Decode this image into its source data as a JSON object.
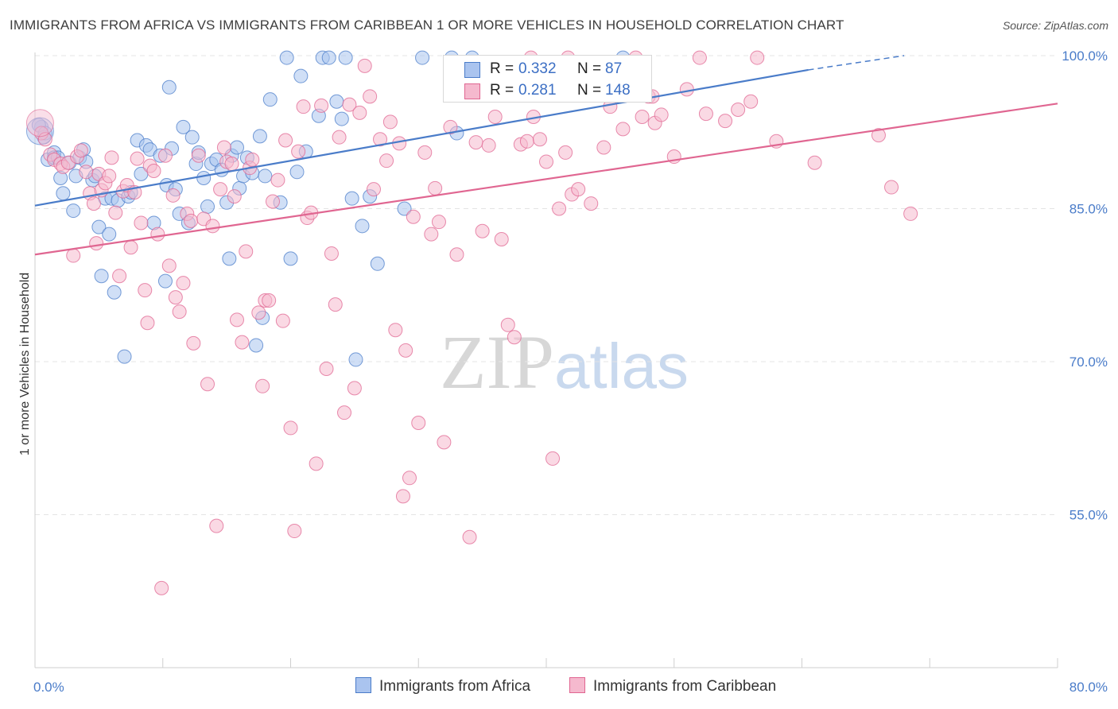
{
  "title": "IMMIGRANTS FROM AFRICA VS IMMIGRANTS FROM CARIBBEAN 1 OR MORE VEHICLES IN HOUSEHOLD CORRELATION CHART",
  "source": "Source: ZipAtlas.com",
  "watermark": {
    "zip": "ZIP",
    "atlas": "atlas"
  },
  "colors": {
    "africa": "#4a7cc9",
    "africa_fill": "#aac4ef",
    "caribbean": "#e06691",
    "caribbean_fill": "#f5b9ce",
    "tick": "#4a7cc9"
  },
  "legend": {
    "rows": [
      {
        "r_label": "R =",
        "r_value": "0.332",
        "n_label": "N =",
        "n_value": "87"
      },
      {
        "r_label": "R =",
        "r_value": "0.281",
        "n_label": "N =",
        "n_value": "148"
      }
    ]
  },
  "bottom_legend": {
    "africa": "Immigrants from Africa",
    "caribbean": "Immigrants from Caribbean"
  },
  "chart_data": {
    "type": "scatter",
    "xlabel": "",
    "ylabel": "1 or more Vehicles in Household",
    "xlim": [
      0,
      80
    ],
    "ylim": [
      40,
      100
    ],
    "x_tick_labels": [
      "0.0%",
      "80.0%"
    ],
    "y_ticks": [
      100,
      85,
      70,
      55
    ],
    "y_tick_labels": [
      "100.0%",
      "85.0%",
      "70.0%",
      "55.0%"
    ],
    "grid": true,
    "series": [
      {
        "name": "Immigrants from Africa",
        "trend": {
          "x1": 0,
          "y1": 85.3,
          "x2": 60.5,
          "y2": 98.6,
          "dash_to_x": 68,
          "dash_to_y": 100
        },
        "points": [
          [
            0.5,
            93.0
          ],
          [
            0.7,
            92.0
          ],
          [
            1.0,
            89.8
          ],
          [
            1.5,
            90.5
          ],
          [
            1.5,
            90.0
          ],
          [
            2.0,
            88.0
          ],
          [
            2.2,
            86.5
          ],
          [
            2.7,
            89.5
          ],
          [
            3.0,
            84.8
          ],
          [
            3.2,
            88.2
          ],
          [
            3.5,
            90.0
          ],
          [
            3.8,
            90.8
          ],
          [
            4.0,
            89.6
          ],
          [
            4.5,
            87.8
          ],
          [
            4.7,
            88.2
          ],
          [
            5.0,
            83.2
          ],
          [
            5.2,
            78.4
          ],
          [
            5.5,
            86.0
          ],
          [
            5.8,
            82.5
          ],
          [
            6.0,
            86.0
          ],
          [
            6.2,
            76.8
          ],
          [
            6.5,
            85.8
          ],
          [
            7.0,
            70.5
          ],
          [
            7.3,
            86.2
          ],
          [
            7.5,
            86.6
          ],
          [
            8.0,
            91.7
          ],
          [
            8.3,
            88.4
          ],
          [
            8.7,
            91.2
          ],
          [
            9.0,
            90.8
          ],
          [
            9.3,
            83.6
          ],
          [
            9.8,
            90.2
          ],
          [
            10.2,
            77.9
          ],
          [
            10.3,
            87.3
          ],
          [
            10.5,
            96.9
          ],
          [
            10.7,
            90.9
          ],
          [
            11.0,
            86.9
          ],
          [
            11.3,
            84.5
          ],
          [
            11.6,
            93.0
          ],
          [
            12.0,
            83.6
          ],
          [
            12.3,
            92.0
          ],
          [
            12.6,
            89.4
          ],
          [
            12.8,
            90.5
          ],
          [
            13.2,
            88.0
          ],
          [
            13.5,
            85.2
          ],
          [
            13.8,
            89.4
          ],
          [
            14.2,
            89.8
          ],
          [
            14.6,
            88.8
          ],
          [
            15.0,
            85.6
          ],
          [
            15.2,
            80.1
          ],
          [
            15.4,
            90.2
          ],
          [
            15.8,
            91.0
          ],
          [
            16.0,
            87.0
          ],
          [
            16.3,
            88.2
          ],
          [
            16.6,
            90.0
          ],
          [
            17.0,
            88.5
          ],
          [
            17.3,
            71.6
          ],
          [
            17.6,
            92.1
          ],
          [
            17.8,
            74.3
          ],
          [
            18.0,
            88.2
          ],
          [
            18.4,
            95.7
          ],
          [
            19.2,
            85.6
          ],
          [
            19.7,
            99.8
          ],
          [
            20.0,
            80.1
          ],
          [
            20.5,
            88.6
          ],
          [
            20.8,
            98.0
          ],
          [
            21.2,
            90.6
          ],
          [
            22.2,
            94.1
          ],
          [
            22.5,
            99.8
          ],
          [
            23.0,
            99.8
          ],
          [
            23.6,
            95.5
          ],
          [
            24.0,
            93.8
          ],
          [
            24.3,
            99.8
          ],
          [
            24.8,
            86.0
          ],
          [
            25.1,
            70.2
          ],
          [
            25.6,
            83.3
          ],
          [
            26.2,
            86.2
          ],
          [
            26.8,
            79.6
          ],
          [
            28.9,
            85.0
          ],
          [
            30.3,
            99.8
          ],
          [
            32.6,
            99.8
          ],
          [
            33.0,
            92.4
          ],
          [
            34.2,
            99.8
          ],
          [
            39.0,
            96.5
          ],
          [
            46.0,
            99.8
          ],
          [
            0.3,
            93.2
          ],
          [
            0.8,
            92.4
          ],
          [
            1.8,
            90.0
          ]
        ],
        "large_points": [
          [
            0.4,
            92.6
          ]
        ]
      },
      {
        "name": "Immigrants from Caribbean",
        "trend": {
          "x1": 0,
          "y1": 80.5,
          "x2": 80,
          "y2": 95.3
        },
        "points": [
          [
            0.5,
            92.4
          ],
          [
            0.8,
            91.8
          ],
          [
            1.2,
            90.3
          ],
          [
            1.5,
            89.8
          ],
          [
            2.0,
            89.4
          ],
          [
            2.2,
            89.1
          ],
          [
            2.6,
            89.5
          ],
          [
            3.0,
            80.4
          ],
          [
            3.3,
            90.1
          ],
          [
            3.6,
            90.7
          ],
          [
            4.0,
            88.6
          ],
          [
            4.3,
            86.5
          ],
          [
            4.6,
            85.5
          ],
          [
            4.8,
            81.6
          ],
          [
            5.0,
            88.4
          ],
          [
            5.2,
            86.8
          ],
          [
            5.5,
            87.5
          ],
          [
            5.8,
            88.2
          ],
          [
            6.0,
            90.0
          ],
          [
            6.3,
            84.6
          ],
          [
            6.6,
            78.4
          ],
          [
            6.9,
            86.7
          ],
          [
            7.2,
            87.3
          ],
          [
            7.5,
            81.2
          ],
          [
            7.8,
            86.6
          ],
          [
            8.0,
            89.9
          ],
          [
            8.3,
            83.6
          ],
          [
            8.6,
            77.0
          ],
          [
            8.8,
            73.8
          ],
          [
            9.0,
            89.2
          ],
          [
            9.3,
            88.7
          ],
          [
            9.6,
            82.5
          ],
          [
            9.9,
            47.8
          ],
          [
            10.2,
            90.2
          ],
          [
            10.5,
            79.4
          ],
          [
            10.8,
            86.3
          ],
          [
            11.0,
            76.3
          ],
          [
            11.3,
            74.9
          ],
          [
            11.6,
            77.7
          ],
          [
            11.9,
            84.5
          ],
          [
            12.2,
            83.8
          ],
          [
            12.4,
            71.8
          ],
          [
            12.8,
            90.2
          ],
          [
            13.2,
            84.0
          ],
          [
            13.5,
            67.8
          ],
          [
            13.9,
            83.3
          ],
          [
            14.2,
            53.9
          ],
          [
            14.5,
            86.9
          ],
          [
            14.8,
            91.0
          ],
          [
            15.0,
            89.6
          ],
          [
            15.4,
            89.4
          ],
          [
            15.6,
            86.2
          ],
          [
            15.8,
            74.1
          ],
          [
            16.2,
            71.9
          ],
          [
            16.5,
            80.8
          ],
          [
            16.8,
            89.0
          ],
          [
            17.0,
            89.8
          ],
          [
            17.5,
            74.8
          ],
          [
            17.8,
            67.6
          ],
          [
            18.0,
            76.0
          ],
          [
            18.3,
            76.0
          ],
          [
            18.6,
            85.7
          ],
          [
            19.0,
            87.8
          ],
          [
            19.4,
            74.0
          ],
          [
            19.6,
            91.7
          ],
          [
            20.0,
            63.5
          ],
          [
            20.3,
            53.4
          ],
          [
            20.6,
            90.6
          ],
          [
            21.0,
            95.0
          ],
          [
            21.3,
            84.1
          ],
          [
            21.6,
            84.6
          ],
          [
            22.0,
            60.0
          ],
          [
            22.4,
            95.1
          ],
          [
            22.8,
            69.3
          ],
          [
            23.2,
            80.6
          ],
          [
            23.5,
            75.6
          ],
          [
            23.8,
            92.0
          ],
          [
            24.2,
            65.0
          ],
          [
            24.6,
            95.2
          ],
          [
            25.0,
            67.4
          ],
          [
            25.4,
            94.4
          ],
          [
            25.8,
            99.0
          ],
          [
            26.2,
            96.0
          ],
          [
            26.5,
            86.9
          ],
          [
            27.0,
            91.8
          ],
          [
            27.5,
            89.7
          ],
          [
            27.8,
            93.5
          ],
          [
            28.2,
            73.1
          ],
          [
            28.5,
            91.4
          ],
          [
            28.8,
            56.8
          ],
          [
            29.0,
            71.1
          ],
          [
            29.3,
            58.6
          ],
          [
            29.6,
            84.2
          ],
          [
            30.0,
            64.0
          ],
          [
            30.5,
            90.5
          ],
          [
            31.0,
            82.5
          ],
          [
            31.3,
            87.0
          ],
          [
            31.6,
            83.7
          ],
          [
            32.0,
            62.1
          ],
          [
            32.5,
            93.0
          ],
          [
            33.0,
            80.5
          ],
          [
            33.5,
            96.4
          ],
          [
            34.0,
            52.8
          ],
          [
            34.5,
            91.5
          ],
          [
            35.0,
            82.8
          ],
          [
            35.5,
            91.2
          ],
          [
            36.0,
            94.0
          ],
          [
            36.5,
            82.0
          ],
          [
            37.0,
            73.6
          ],
          [
            37.5,
            72.4
          ],
          [
            38.0,
            91.3
          ],
          [
            38.5,
            91.6
          ],
          [
            39.0,
            94.0
          ],
          [
            39.5,
            91.8
          ],
          [
            40.0,
            89.6
          ],
          [
            40.5,
            60.5
          ],
          [
            41.0,
            85.0
          ],
          [
            41.5,
            90.5
          ],
          [
            42.0,
            86.4
          ],
          [
            42.5,
            86.9
          ],
          [
            43.5,
            85.5
          ],
          [
            44.0,
            96.2
          ],
          [
            44.5,
            91.0
          ],
          [
            45.0,
            95.0
          ],
          [
            46.0,
            92.8
          ],
          [
            47.0,
            99.8
          ],
          [
            47.5,
            94.0
          ],
          [
            48.0,
            96.0
          ],
          [
            48.5,
            93.4
          ],
          [
            49.0,
            94.2
          ],
          [
            50.0,
            90.1
          ],
          [
            52.0,
            99.8
          ],
          [
            52.5,
            94.3
          ],
          [
            54.0,
            93.6
          ],
          [
            55.0,
            94.7
          ],
          [
            56.0,
            95.5
          ],
          [
            56.5,
            99.8
          ],
          [
            58.0,
            91.6
          ],
          [
            61.0,
            89.5
          ],
          [
            66.0,
            92.2
          ],
          [
            67.0,
            87.1
          ],
          [
            68.5,
            84.5
          ],
          [
            38.8,
            99.8
          ],
          [
            40.3,
            96.3
          ],
          [
            41.7,
            99.8
          ],
          [
            45.5,
            97.2
          ],
          [
            48.3,
            96.0
          ],
          [
            51.0,
            96.7
          ]
        ],
        "large_points": [
          [
            0.4,
            93.4
          ]
        ]
      }
    ]
  }
}
